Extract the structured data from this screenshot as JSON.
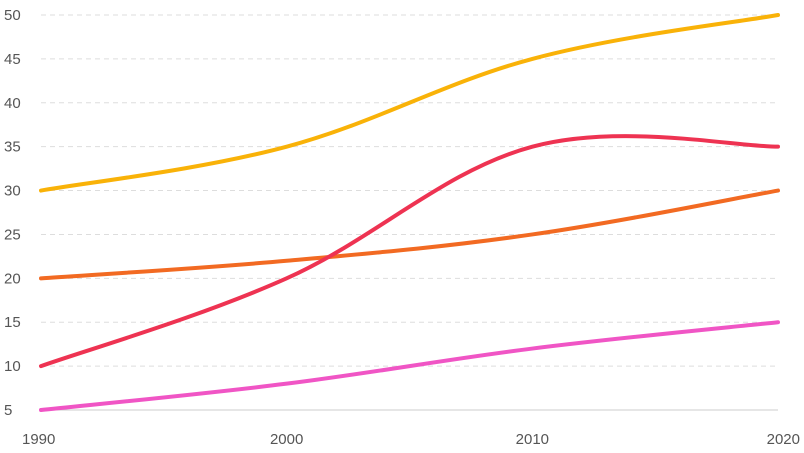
{
  "chart_data": {
    "type": "line",
    "title": "",
    "xlabel": "",
    "ylabel": "",
    "x": [
      1990,
      2000,
      2010,
      2020
    ],
    "x_tick_labels": [
      "1990",
      "2000",
      "2010",
      "2020"
    ],
    "y_tick_labels": [
      "5",
      "10",
      "15",
      "20",
      "25",
      "30",
      "35",
      "40",
      "45",
      "50"
    ],
    "ylim": [
      5,
      50
    ],
    "xlim": [
      1990,
      2020
    ],
    "grid": true,
    "legend": "none",
    "series": [
      {
        "values": [
          30,
          35,
          45,
          50
        ],
        "color": "#F9B208"
      },
      {
        "values": [
          20,
          22,
          25,
          30
        ],
        "color": "#F26A22"
      },
      {
        "values": [
          10,
          20,
          35,
          35
        ],
        "color": "#EE3352"
      },
      {
        "values": [
          5,
          8,
          12,
          15
        ],
        "color": "#F055C5"
      }
    ]
  }
}
